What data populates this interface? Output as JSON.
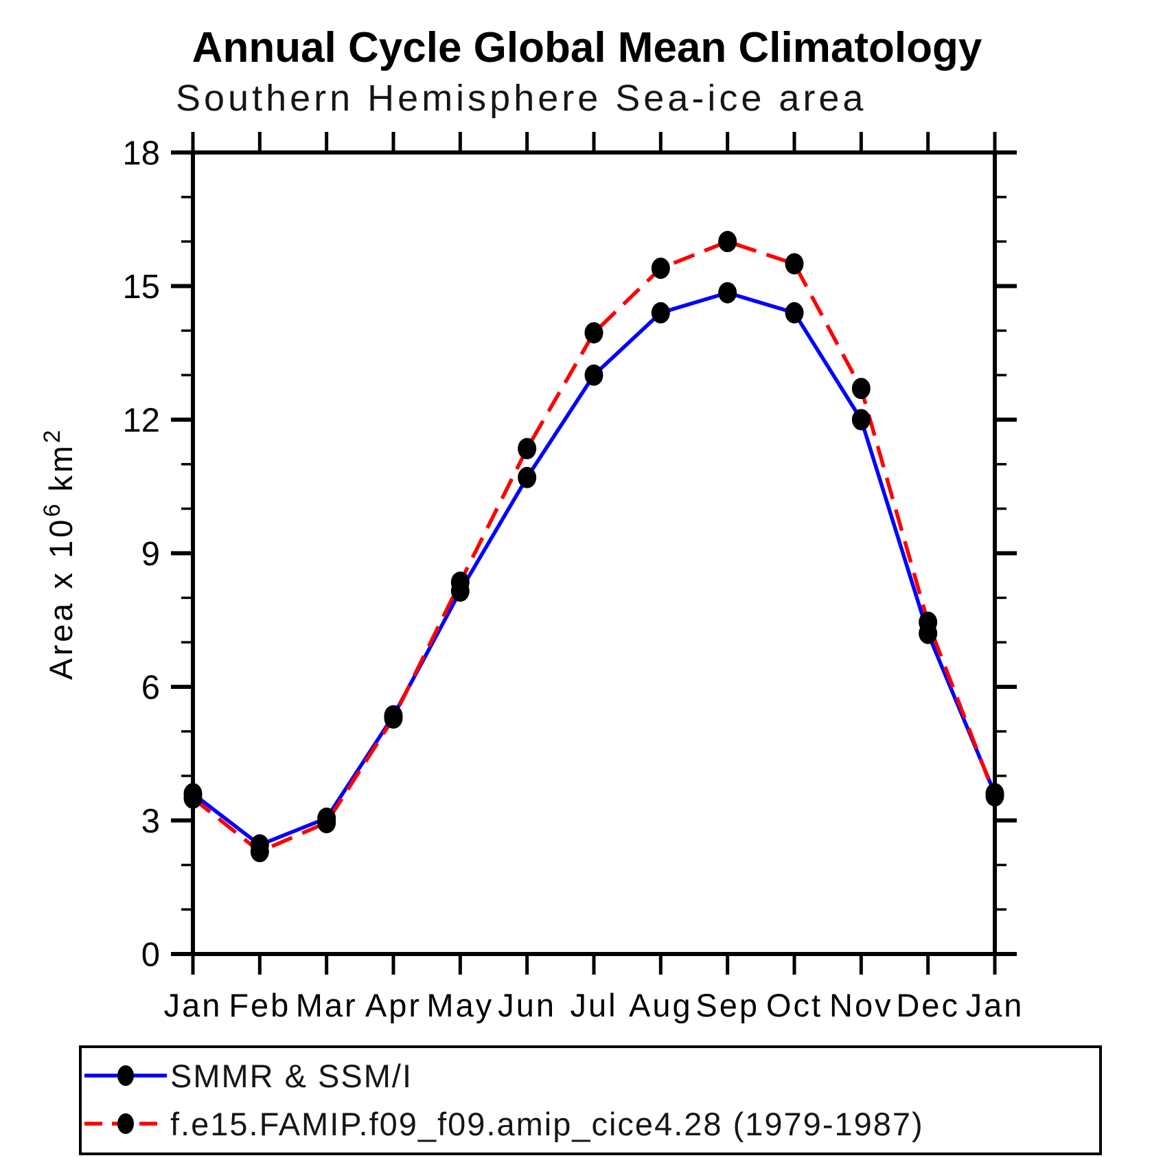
{
  "chart": {
    "title": "Annual Cycle Global Mean Climatology",
    "subtitle": "Southern Hemisphere Sea-ice area",
    "y_axis_label": {
      "pre": "Area x 10",
      "exponent": "6",
      "unit": "km",
      "unit_exponent": "2"
    }
  },
  "chart_data": {
    "type": "line",
    "title": "Annual Cycle Global Mean Climatology",
    "subtitle": "Southern Hemisphere Sea-ice area",
    "ylabel": "Area x 10^6 km^2",
    "xlabel": "",
    "ylim": [
      0,
      18
    ],
    "y_major_ticks": [
      0,
      3,
      6,
      9,
      12,
      15,
      18
    ],
    "y_minor_tick_interval": 1,
    "grid": false,
    "legend_position": "below",
    "x_tick_labels": [
      "Jan",
      "Feb",
      "Mar",
      "Apr",
      "May",
      "Jun",
      "Jul",
      "Aug",
      "Sep",
      "Oct",
      "Nov",
      "Dec",
      "Jan"
    ],
    "series": [
      {
        "name": "SMMR & SSM/I",
        "color": "#0000ff",
        "style": "solid",
        "marker": "filled-circle",
        "marker_color": "#000000",
        "values": [
          3.6,
          2.45,
          3.05,
          5.35,
          8.15,
          10.7,
          13.0,
          14.4,
          14.85,
          14.4,
          12.0,
          7.2,
          3.6
        ]
      },
      {
        "name": "f.e15.FAMIP.f09_f09.amip_cice4.28 (1979-1987)",
        "color": "#ff0000",
        "style": "dashed",
        "marker": "filled-circle",
        "marker_color": "#000000",
        "values": [
          3.5,
          2.3,
          2.95,
          5.3,
          8.35,
          11.35,
          13.95,
          15.4,
          16.0,
          15.5,
          12.7,
          7.45,
          3.55
        ]
      }
    ]
  }
}
